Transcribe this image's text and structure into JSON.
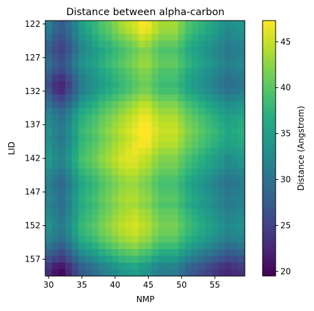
{
  "chart_data": {
    "type": "heatmap",
    "title": "Distance between alpha-carbon",
    "xlabel": "NMP",
    "ylabel": "LID",
    "colorbar_label": "Distance (Angstrom)",
    "colormap": "viridis",
    "x_start": 30,
    "x_end": 59,
    "y_start": 122,
    "y_end": 159,
    "xticks": [
      30,
      35,
      40,
      45,
      50,
      55
    ],
    "yticks": [
      122,
      127,
      132,
      137,
      142,
      147,
      152,
      157
    ],
    "colorbar_ticks": [
      20,
      25,
      30,
      35,
      40,
      45
    ],
    "vmin": 19.5,
    "vmax": 47.3,
    "x": [
      30,
      31,
      32,
      33,
      34,
      35,
      36,
      37,
      38,
      39,
      40,
      41,
      42,
      43,
      44,
      45,
      46,
      47,
      48,
      49,
      50,
      51,
      52,
      53,
      54,
      55,
      56,
      57,
      58,
      59
    ],
    "y": [
      122,
      123,
      124,
      125,
      126,
      127,
      128,
      129,
      130,
      131,
      132,
      133,
      134,
      135,
      136,
      137,
      138,
      139,
      140,
      141,
      142,
      143,
      144,
      145,
      146,
      147,
      148,
      149,
      150,
      151,
      152,
      153,
      154,
      155,
      156,
      157,
      158,
      159
    ],
    "values": [
      [
        31.5,
        29,
        27.5,
        29.5,
        32,
        35,
        36.5,
        37.5,
        39.5,
        40.5,
        42,
        43.5,
        44.5,
        45.5,
        47,
        46.5,
        44.5,
        43.5,
        43.5,
        43.5,
        41.5,
        39.5,
        38.5,
        37.5,
        36.5,
        35.5,
        34,
        33,
        33.5,
        34
      ],
      [
        31,
        28.5,
        27.5,
        29,
        31.5,
        34.5,
        36,
        37.5,
        39,
        40,
        41.5,
        43,
        44,
        45,
        46.5,
        46,
        44.5,
        43,
        43,
        43,
        41,
        39,
        38,
        37,
        36,
        35,
        33.5,
        32.5,
        33,
        33.5
      ],
      [
        30,
        27.5,
        26.5,
        28.5,
        31,
        33.5,
        35,
        36.5,
        38,
        39,
        40.5,
        41.5,
        42.5,
        43.5,
        45,
        44.5,
        43,
        42,
        42,
        42,
        40,
        38,
        37,
        36,
        35,
        34,
        33,
        32,
        32.5,
        33
      ],
      [
        28.5,
        26.5,
        25.5,
        27.5,
        30,
        32.5,
        34,
        35.5,
        37,
        37.5,
        39,
        40,
        41,
        42,
        43.5,
        43,
        41.5,
        40.5,
        40.5,
        40.5,
        39,
        37,
        36,
        35,
        34,
        33,
        32,
        31,
        31.5,
        32
      ],
      [
        28,
        26,
        25,
        27,
        29.5,
        32,
        33.5,
        34.5,
        36,
        37,
        38,
        39,
        40,
        41,
        42,
        42,
        40.5,
        39.5,
        39.5,
        39.5,
        38,
        36.5,
        35.5,
        34.5,
        33.5,
        32.5,
        31.5,
        30.5,
        31,
        31.5
      ],
      [
        29,
        27,
        26,
        28,
        30.5,
        33,
        34,
        35,
        36.5,
        37.5,
        38.5,
        39.5,
        40.5,
        41.5,
        42.5,
        42.5,
        41,
        40,
        40,
        40,
        38.5,
        37,
        36,
        35,
        34,
        33,
        32,
        31,
        31.5,
        32
      ],
      [
        29.5,
        27.5,
        26.5,
        28.5,
        31,
        33.5,
        34.5,
        35.5,
        37,
        38,
        39,
        40,
        41,
        42,
        43,
        43,
        41.5,
        40.5,
        40.5,
        40.5,
        39,
        37.5,
        36.5,
        35.5,
        34.5,
        33.5,
        32.5,
        31.5,
        32,
        32.5
      ],
      [
        28.5,
        26.5,
        25.5,
        27.5,
        30,
        32.5,
        33.5,
        34.5,
        36,
        37,
        38,
        39,
        40,
        41,
        42,
        42,
        40.5,
        39.5,
        39.5,
        39.5,
        38,
        36.5,
        35.5,
        34.5,
        33.5,
        32.5,
        31.5,
        30.5,
        31,
        31.5
      ],
      [
        27,
        24.5,
        23.5,
        26,
        29,
        31.5,
        33,
        34,
        35.5,
        36.5,
        37.5,
        38.5,
        39.5,
        40.5,
        41.5,
        41.5,
        40,
        39,
        39,
        39,
        37.5,
        36,
        35,
        34,
        33,
        32,
        31,
        30,
        30.5,
        31
      ],
      [
        26,
        23.5,
        22.5,
        25,
        28,
        31,
        32.5,
        33.5,
        35,
        36,
        37,
        38,
        39,
        40,
        41,
        41,
        39.5,
        38.5,
        38.5,
        38.5,
        37,
        35.5,
        34.5,
        33.5,
        32.5,
        31.5,
        30.5,
        29.5,
        30,
        30.5
      ],
      [
        27,
        24,
        23,
        25.5,
        28.5,
        31.5,
        33,
        34,
        35.5,
        36.5,
        37.5,
        38.5,
        39.5,
        40.5,
        41.5,
        41.5,
        40,
        39,
        39,
        39,
        37.5,
        36,
        35,
        34,
        33,
        32,
        31,
        30,
        30.5,
        31
      ],
      [
        28.5,
        26,
        25,
        27.5,
        30,
        33,
        34.5,
        35.5,
        37,
        38,
        39,
        40,
        41,
        42,
        43,
        43,
        41.5,
        40.5,
        40.5,
        40.5,
        39,
        37.5,
        36.5,
        35.5,
        34.5,
        33.5,
        32.5,
        31.5,
        32,
        32.5
      ],
      [
        30,
        28,
        27,
        29,
        31.5,
        34.5,
        36,
        37,
        38.5,
        39.5,
        40.5,
        41.5,
        42.5,
        43.5,
        44.5,
        44.5,
        43,
        42,
        42,
        42,
        40.5,
        39,
        38,
        37,
        36,
        35,
        34,
        33,
        33.5,
        34
      ],
      [
        31.5,
        30,
        29,
        31,
        33.5,
        36,
        37,
        38,
        39.5,
        40.5,
        41.5,
        42.5,
        43.5,
        44.5,
        45.5,
        45.5,
        44,
        43,
        43,
        43,
        41.5,
        40,
        39,
        38,
        37,
        36,
        35,
        34,
        34.5,
        35
      ],
      [
        32.5,
        31,
        30,
        32,
        34.5,
        37,
        38,
        39,
        40.5,
        41.5,
        42.5,
        43.5,
        44.5,
        45.5,
        46.5,
        46.5,
        45,
        44,
        44,
        44,
        42.5,
        41,
        40,
        39,
        38,
        37,
        36,
        35,
        35.5,
        36
      ],
      [
        33,
        31.5,
        30.5,
        32.5,
        35,
        37.5,
        38.5,
        39.5,
        41,
        42,
        43,
        44,
        45,
        46,
        47,
        47,
        45.5,
        44.5,
        44.5,
        44.5,
        43,
        41.5,
        40.5,
        39.5,
        38.5,
        37.5,
        36.5,
        35.5,
        36,
        36.5
      ],
      [
        33.5,
        32,
        31,
        33,
        35.5,
        38,
        39,
        40,
        41.5,
        42.5,
        43.5,
        44.5,
        45.5,
        46.5,
        47.5,
        47.5,
        46,
        45,
        45,
        45,
        43.5,
        42,
        41,
        40,
        39,
        38,
        37,
        36,
        36.5,
        37
      ],
      [
        33,
        31.5,
        30.5,
        32.5,
        35,
        37.5,
        38.5,
        39.5,
        41,
        42,
        43,
        44,
        45,
        46,
        47,
        47,
        45.5,
        44.5,
        44.5,
        44.5,
        43,
        41.5,
        40.5,
        39.5,
        38.5,
        37.5,
        36.5,
        35.5,
        36,
        36.5
      ],
      [
        33.5,
        32,
        31,
        33,
        35.5,
        38,
        39,
        40,
        41.5,
        42.5,
        43.5,
        44.5,
        45.5,
        46.5,
        47,
        46.5,
        45,
        44,
        44,
        44,
        42.5,
        41,
        40,
        39,
        38,
        37,
        36,
        35,
        35.5,
        36
      ],
      [
        34,
        32.5,
        31.5,
        33.5,
        36,
        38.5,
        39.5,
        40.5,
        42,
        43,
        44,
        45,
        46,
        46.5,
        46,
        45.5,
        44,
        43,
        43,
        43,
        41.5,
        40,
        39,
        38,
        37,
        36,
        35,
        34,
        34.5,
        35
      ],
      [
        34.5,
        33,
        32,
        34,
        36.5,
        39,
        40,
        41,
        42.5,
        43.5,
        44.5,
        45.5,
        46,
        46,
        45,
        44.5,
        43,
        42,
        42,
        42,
        40.5,
        39,
        38,
        37,
        36,
        35,
        34,
        33,
        33.5,
        34
      ],
      [
        34,
        32.5,
        31.5,
        33.5,
        36,
        38.5,
        39.5,
        40.5,
        42,
        43,
        44,
        45,
        45.5,
        45.5,
        44.5,
        44,
        42.5,
        41.5,
        41.5,
        41.5,
        40,
        38.5,
        37.5,
        36.5,
        35.5,
        34.5,
        33.5,
        32.5,
        33,
        33.5
      ],
      [
        33,
        31.5,
        30.5,
        32.5,
        35,
        37.5,
        38.5,
        39.5,
        41,
        42,
        43,
        44,
        44.5,
        44.5,
        43.5,
        43,
        41.5,
        40.5,
        40.5,
        40.5,
        39,
        37.5,
        36.5,
        35.5,
        34.5,
        33.5,
        32.5,
        31.5,
        32,
        32.5
      ],
      [
        32,
        30.5,
        29.5,
        31.5,
        34,
        36.5,
        37.5,
        38.5,
        40,
        41,
        42,
        43,
        43.5,
        43.5,
        42.5,
        42,
        40.5,
        39.5,
        39.5,
        39.5,
        38,
        36.5,
        35.5,
        34.5,
        33.5,
        32.5,
        31.5,
        30.5,
        31,
        31.5
      ],
      [
        31.5,
        30,
        29,
        31,
        33.5,
        36,
        37,
        38,
        39.5,
        40.5,
        41.5,
        42.5,
        43,
        43,
        42,
        41.5,
        40,
        39,
        39,
        39,
        37.5,
        36,
        35,
        34,
        33,
        32,
        31,
        30,
        30.5,
        31
      ],
      [
        32,
        30.5,
        29.5,
        31.5,
        34,
        36.5,
        37.5,
        38.5,
        40,
        41,
        42,
        43,
        43.5,
        43.5,
        42.5,
        42,
        40.5,
        39.5,
        39.5,
        39.5,
        38,
        36.5,
        35.5,
        34.5,
        33.5,
        32.5,
        31.5,
        30.5,
        31,
        31.5
      ],
      [
        32.5,
        31,
        30,
        32,
        34.5,
        37,
        38,
        39,
        40.5,
        41.5,
        42.5,
        43.5,
        44,
        44,
        43,
        42.5,
        41,
        40,
        40,
        40,
        38.5,
        37,
        36,
        35,
        34,
        33,
        32,
        31,
        31.5,
        32
      ],
      [
        32,
        30.5,
        29.5,
        31.5,
        34,
        36.5,
        37.5,
        38.5,
        40,
        41,
        42,
        43,
        43.5,
        43.5,
        42.5,
        42,
        40.5,
        39.5,
        39.5,
        39.5,
        38,
        36.5,
        35.5,
        34.5,
        33.5,
        32.5,
        31.5,
        30.5,
        31,
        31.5
      ],
      [
        32.5,
        31,
        30,
        32,
        34.5,
        37,
        38,
        39,
        40.5,
        41.5,
        42.5,
        43.5,
        44,
        44.5,
        43.5,
        43,
        41.5,
        40.5,
        40.5,
        40.5,
        39,
        37.5,
        36.5,
        35.5,
        34.5,
        33.5,
        32.5,
        31.5,
        32,
        32.5
      ],
      [
        33,
        31.5,
        30.5,
        32.5,
        35,
        37.5,
        38.5,
        39.5,
        41,
        42,
        43,
        44,
        44.5,
        45,
        44,
        43.5,
        42,
        41,
        41,
        41,
        39.5,
        38,
        37,
        36,
        35,
        34,
        33,
        32,
        32.5,
        33
      ],
      [
        33.5,
        32,
        31,
        33,
        35.5,
        38,
        39,
        40,
        41.5,
        42.5,
        43.5,
        44.5,
        45,
        45.5,
        44.5,
        44,
        42.5,
        41.5,
        41.5,
        41.5,
        40,
        38.5,
        37.5,
        36.5,
        35.5,
        34.5,
        33.5,
        32.5,
        33,
        33.5
      ],
      [
        33,
        31.5,
        30.5,
        32.5,
        35,
        37.5,
        38.5,
        39.5,
        41,
        42,
        43,
        44,
        44.5,
        45,
        44,
        43.5,
        42,
        41,
        41,
        41,
        39.5,
        38,
        37,
        36,
        35,
        34,
        33,
        32,
        32.5,
        33
      ],
      [
        32,
        30.5,
        29.5,
        31.5,
        34,
        36.5,
        37.5,
        38.5,
        40,
        41,
        42,
        43,
        43.5,
        44,
        43,
        42.5,
        41,
        40,
        40,
        40,
        38.5,
        37,
        36,
        35,
        34,
        33,
        32,
        31,
        31.5,
        32
      ],
      [
        30.5,
        29,
        28,
        30,
        32.5,
        35,
        36,
        37,
        38.5,
        39.5,
        40.5,
        41.5,
        42,
        42.5,
        41.5,
        41,
        39.5,
        38.5,
        38.5,
        38.5,
        37,
        35.5,
        34.5,
        33.5,
        32.5,
        31.5,
        30.5,
        29.5,
        30,
        30.5
      ],
      [
        28.5,
        27,
        26,
        28,
        30.5,
        33,
        34,
        35,
        36.5,
        37.5,
        38.5,
        39.5,
        40,
        40.5,
        39.5,
        39,
        37.5,
        36.5,
        36.5,
        36.5,
        35,
        33.5,
        32.5,
        31.5,
        30.5,
        29.5,
        28.5,
        27.5,
        28,
        28.5
      ],
      [
        26.5,
        25,
        24,
        26,
        28.5,
        31,
        32,
        33,
        34.5,
        35.5,
        36.5,
        37.5,
        38,
        38.5,
        37.5,
        37,
        35.5,
        34.5,
        34.5,
        34.5,
        33,
        31.5,
        30.5,
        29.5,
        28.5,
        27.5,
        26.5,
        25.5,
        26,
        26.5
      ],
      [
        24,
        22,
        21.5,
        23.5,
        26,
        28.5,
        29.5,
        30.5,
        32,
        33,
        34,
        35,
        35.5,
        36,
        35,
        34.5,
        33,
        32,
        32,
        32,
        30.5,
        29,
        28,
        27,
        26,
        25,
        24,
        23.5,
        24,
        24.5
      ],
      [
        23,
        21,
        20,
        22.5,
        25,
        27.5,
        28.5,
        29.5,
        31,
        32,
        33,
        34,
        34.5,
        35,
        34,
        33.5,
        32,
        31,
        31,
        31,
        29.5,
        28,
        27,
        26,
        25,
        24,
        23,
        22.5,
        23,
        23.5
      ]
    ]
  }
}
